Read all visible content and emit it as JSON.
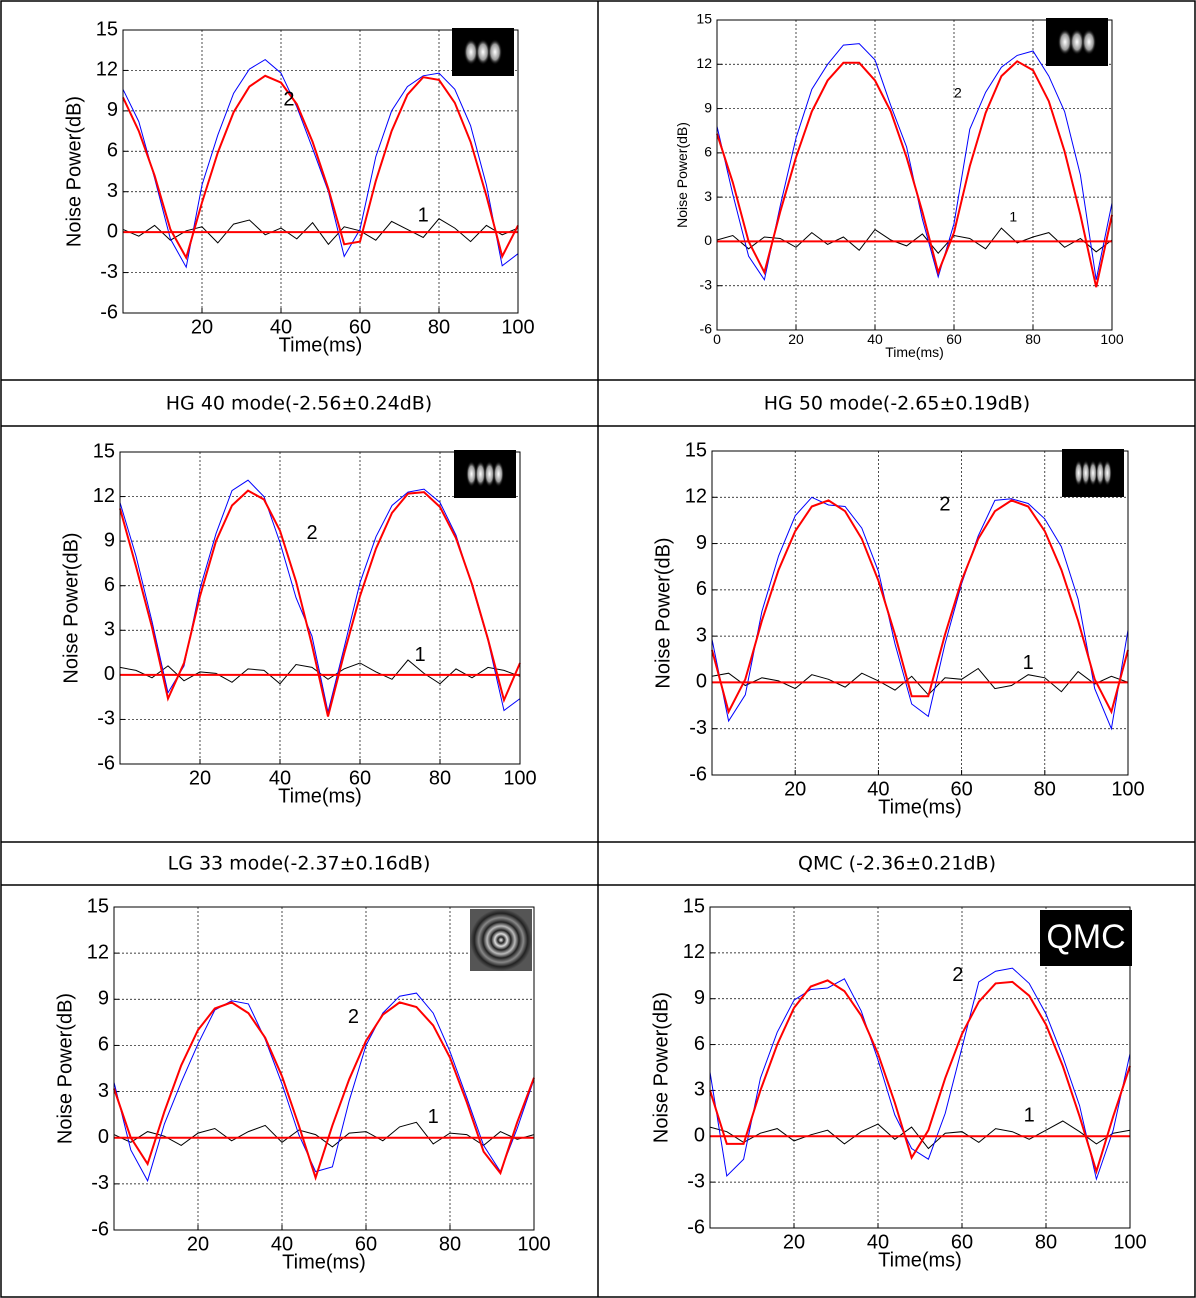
{
  "captions": [
    "HG 40 mode(-2.56±0.24dB)",
    "HG 50 mode(-2.65±0.19dB)",
    "LG 33 mode(-2.37±0.16dB)",
    "QMC (-2.36±0.21dB)"
  ],
  "chart_data": [
    {
      "type": "line",
      "xlabel": "Time(ms)",
      "ylabel": "Noise Power(dB)",
      "xlim": [
        0,
        100
      ],
      "ylim": [
        -6,
        15
      ],
      "xticks": [
        20,
        40,
        60,
        80,
        100
      ],
      "yticks": [
        -6,
        -3,
        0,
        3,
        6,
        9,
        12,
        15
      ],
      "grid": true,
      "x": [
        0,
        4,
        8,
        12,
        16,
        20,
        24,
        28,
        32,
        36,
        40,
        44,
        48,
        52,
        56,
        60,
        64,
        68,
        72,
        76,
        80,
        84,
        88,
        92,
        96,
        100
      ],
      "series": [
        {
          "color": "#000000",
          "values": [
            0.2,
            -0.3,
            0.5,
            -0.6,
            0.1,
            0.4,
            -0.8,
            0.6,
            0.9,
            -0.2,
            0.3,
            -0.5,
            0.7,
            -0.9,
            0.4,
            0.1,
            -0.6,
            0.8,
            0.2,
            -0.4,
            1.0,
            0.3,
            -0.7,
            0.5,
            -0.2,
            0.3
          ]
        },
        {
          "color": "#0000ff",
          "values": [
            10.6,
            8.2,
            4.0,
            -0.5,
            -2.6,
            3.5,
            7.2,
            10.3,
            12.1,
            12.8,
            11.8,
            9.3,
            6.2,
            3.0,
            -1.8,
            0.2,
            5.6,
            9.0,
            10.8,
            11.6,
            11.8,
            10.6,
            7.9,
            3.5,
            -2.5,
            -1.6
          ]
        },
        {
          "color": "#ff0000",
          "values": [
            0,
            0,
            0,
            0,
            0,
            0,
            0,
            0,
            0,
            0,
            0,
            0,
            0,
            0,
            0,
            0,
            0,
            0,
            0,
            0,
            0,
            0,
            0,
            0,
            0,
            0
          ]
        },
        {
          "color": "#ff0000",
          "values": [
            10.0,
            7.5,
            4.2,
            0.2,
            -1.9,
            2.2,
            5.9,
            8.9,
            10.8,
            11.6,
            11.1,
            9.5,
            6.7,
            3.2,
            -0.9,
            -0.7,
            3.8,
            7.5,
            10.2,
            11.5,
            11.3,
            9.6,
            6.7,
            2.7,
            -1.8,
            0.5
          ]
        }
      ],
      "annotations": [
        {
          "text": "2",
          "x": 42,
          "y": 9.8
        },
        {
          "text": "1",
          "x": 76,
          "y": 1.2
        }
      ]
    },
    {
      "type": "line",
      "xlabel": "Time(ms)",
      "ylabel": "Noise Power(dB)",
      "xlim": [
        0,
        100
      ],
      "ylim": [
        -6,
        15
      ],
      "xticks": [
        0,
        20,
        40,
        60,
        80,
        100
      ],
      "yticks": [
        -6,
        -3,
        0,
        3,
        6,
        9,
        12,
        15
      ],
      "grid": true,
      "x": [
        0,
        4,
        8,
        12,
        16,
        20,
        24,
        28,
        32,
        36,
        40,
        44,
        48,
        52,
        56,
        60,
        64,
        68,
        72,
        76,
        80,
        84,
        88,
        92,
        96,
        100
      ],
      "series": [
        {
          "color": "#000000",
          "values": [
            0.1,
            0.4,
            -0.5,
            0.3,
            0.2,
            -0.4,
            0.6,
            -0.2,
            0.3,
            -0.6,
            0.8,
            0.1,
            -0.3,
            0.5,
            -0.8,
            0.4,
            0.2,
            -0.5,
            0.9,
            -0.1,
            0.3,
            0.6,
            -0.4,
            0.2,
            -0.7,
            0.1
          ]
        },
        {
          "color": "#0000ff",
          "values": [
            7.8,
            3.2,
            -1.0,
            -2.6,
            2.4,
            7.0,
            10.3,
            12.0,
            13.3,
            13.4,
            12.3,
            9.2,
            6.4,
            1.5,
            -2.4,
            1.2,
            7.6,
            10.1,
            11.8,
            12.6,
            12.9,
            11.2,
            8.8,
            4.5,
            -2.6,
            2.6
          ]
        },
        {
          "color": "#ff0000",
          "values": [
            0,
            0,
            0,
            0,
            0,
            0,
            0,
            0,
            0,
            0,
            0,
            0,
            0,
            0,
            0,
            0,
            0,
            0,
            0,
            0,
            0,
            0,
            0,
            0,
            0,
            0
          ]
        },
        {
          "color": "#ff0000",
          "values": [
            7.3,
            4.0,
            0.0,
            -2.1,
            2.0,
            5.7,
            8.8,
            10.9,
            12.1,
            12.1,
            10.9,
            8.8,
            5.7,
            2.0,
            -2.1,
            0.6,
            5.1,
            8.7,
            11.2,
            12.2,
            11.6,
            9.5,
            6.1,
            1.8,
            -3.1,
            1.8
          ]
        }
      ],
      "annotations": [
        {
          "text": "2",
          "x": 61,
          "y": 10
        },
        {
          "text": "1",
          "x": 75,
          "y": 1.6
        }
      ]
    },
    {
      "type": "line",
      "xlabel": "Time(ms)",
      "ylabel": "Noise Power(dB)",
      "xlim": [
        0,
        100
      ],
      "ylim": [
        -6,
        15
      ],
      "xticks": [
        20,
        40,
        60,
        80,
        100
      ],
      "yticks": [
        -6,
        -3,
        0,
        3,
        6,
        9,
        12,
        15
      ],
      "grid": true,
      "x": [
        0,
        4,
        8,
        12,
        16,
        20,
        24,
        28,
        32,
        36,
        40,
        44,
        48,
        52,
        56,
        60,
        64,
        68,
        72,
        76,
        80,
        84,
        88,
        92,
        96,
        100
      ],
      "series": [
        {
          "color": "#000000",
          "values": [
            0.5,
            0.3,
            -0.2,
            0.6,
            -0.4,
            0.2,
            0.1,
            -0.5,
            0.4,
            0.3,
            -0.6,
            0.7,
            0.5,
            -0.3,
            0.4,
            0.8,
            0.2,
            -0.3,
            1.0,
            0.1,
            -0.6,
            0.4,
            -0.2,
            0.5,
            0.3,
            -0.1
          ]
        },
        {
          "color": "#0000ff",
          "values": [
            11.6,
            8.0,
            3.6,
            -1.2,
            0.6,
            5.8,
            9.5,
            12.4,
            13.1,
            12.0,
            8.9,
            5.2,
            2.6,
            -2.5,
            1.8,
            6.2,
            9.3,
            11.4,
            12.3,
            12.5,
            11.6,
            9.4,
            6.0,
            2.3,
            -2.4,
            -1.6
          ]
        },
        {
          "color": "#ff0000",
          "values": [
            0,
            0,
            0,
            0,
            0,
            0,
            0,
            0,
            0,
            0,
            0,
            0,
            0,
            0,
            0,
            0,
            0,
            0,
            0,
            0,
            0,
            0,
            0,
            0,
            0,
            0
          ]
        },
        {
          "color": "#ff0000",
          "values": [
            11.2,
            7.3,
            3.2,
            -1.6,
            0.8,
            5.3,
            9.0,
            11.4,
            12.4,
            11.8,
            9.7,
            6.3,
            2.0,
            -2.8,
            1.4,
            5.3,
            8.5,
            10.9,
            12.2,
            12.3,
            11.3,
            9.2,
            6.1,
            2.4,
            -1.7,
            0.8
          ]
        }
      ],
      "annotations": [
        {
          "text": "2",
          "x": 48,
          "y": 9.5
        },
        {
          "text": "1",
          "x": 75,
          "y": 1.3
        }
      ]
    },
    {
      "type": "line",
      "xlabel": "Time(ms)",
      "ylabel": "Noise Power(dB)",
      "xlim": [
        0,
        100
      ],
      "ylim": [
        -6,
        15
      ],
      "xticks": [
        20,
        40,
        60,
        80,
        100
      ],
      "yticks": [
        -6,
        -3,
        0,
        3,
        6,
        9,
        12,
        15
      ],
      "grid": true,
      "x": [
        0,
        4,
        8,
        12,
        16,
        20,
        24,
        28,
        32,
        36,
        40,
        44,
        48,
        52,
        56,
        60,
        64,
        68,
        72,
        76,
        80,
        84,
        88,
        92,
        96,
        100
      ],
      "series": [
        {
          "color": "#000000",
          "values": [
            0.4,
            0.6,
            -0.2,
            0.3,
            0.1,
            -0.4,
            0.5,
            0.2,
            -0.3,
            0.6,
            0.1,
            -0.5,
            0.4,
            -0.8,
            0.3,
            0.2,
            0.9,
            -0.4,
            -0.2,
            0.5,
            0.3,
            -0.6,
            0.7,
            -0.1,
            0.4,
            0.0
          ]
        },
        {
          "color": "#0000ff",
          "values": [
            2.8,
            -2.5,
            -0.8,
            4.6,
            8.2,
            10.8,
            12.0,
            11.5,
            11.4,
            10.0,
            7.2,
            2.5,
            -1.4,
            -2.2,
            2.5,
            6.4,
            9.5,
            11.8,
            11.9,
            11.6,
            10.6,
            8.8,
            5.4,
            -0.4,
            -3.0,
            3.4
          ]
        },
        {
          "color": "#ff0000",
          "values": [
            0,
            0,
            0,
            0,
            0,
            0,
            0,
            0,
            0,
            0,
            0,
            0,
            0,
            0,
            0,
            0,
            0,
            0,
            0,
            0,
            0,
            0,
            0,
            0,
            0,
            0
          ]
        },
        {
          "color": "#ff0000",
          "values": [
            2.1,
            -1.9,
            0.2,
            4.0,
            7.3,
            9.8,
            11.4,
            11.8,
            11.1,
            9.3,
            6.6,
            3.1,
            -0.9,
            -0.9,
            3.1,
            6.6,
            9.3,
            11.1,
            11.8,
            11.4,
            9.8,
            7.3,
            4.0,
            0.2,
            -1.9,
            2.1
          ]
        }
      ],
      "annotations": [
        {
          "text": "2",
          "x": 56,
          "y": 11.5
        },
        {
          "text": "1",
          "x": 76,
          "y": 1.2
        }
      ]
    },
    {
      "type": "line",
      "xlabel": "Time(ms)",
      "ylabel": "Noise Power(dB)",
      "xlim": [
        0,
        100
      ],
      "ylim": [
        -6,
        15
      ],
      "xticks": [
        20,
        40,
        60,
        80,
        100
      ],
      "yticks": [
        -6,
        -3,
        0,
        3,
        6,
        9,
        12,
        15
      ],
      "grid": true,
      "x": [
        0,
        4,
        8,
        12,
        16,
        20,
        24,
        28,
        32,
        36,
        40,
        44,
        48,
        52,
        56,
        60,
        64,
        68,
        72,
        76,
        80,
        84,
        88,
        92,
        96,
        100
      ],
      "series": [
        {
          "color": "#000000",
          "values": [
            0.2,
            -0.3,
            0.4,
            0.1,
            -0.5,
            0.3,
            0.6,
            -0.2,
            0.4,
            0.8,
            -0.3,
            0.5,
            0.2,
            -0.6,
            0.3,
            0.4,
            -0.2,
            0.7,
            1.0,
            -0.4,
            0.3,
            0.2,
            -0.5,
            0.4,
            -0.1,
            0.2
          ]
        },
        {
          "color": "#0000ff",
          "values": [
            3.6,
            -0.8,
            -2.8,
            0.9,
            3.6,
            6.1,
            8.3,
            8.9,
            8.7,
            6.4,
            3.5,
            0.2,
            -2.2,
            -1.9,
            2.4,
            6.0,
            8.1,
            9.2,
            9.4,
            8.1,
            5.6,
            2.6,
            -0.5,
            -2.2,
            0.6,
            3.8
          ]
        },
        {
          "color": "#ff0000",
          "values": [
            0,
            0,
            0,
            0,
            0,
            0,
            0,
            0,
            0,
            0,
            0,
            0,
            0,
            0,
            0,
            0,
            0,
            0,
            0,
            0,
            0,
            0,
            0,
            0,
            0,
            0
          ]
        },
        {
          "color": "#ff0000",
          "values": [
            3.2,
            0.0,
            -1.7,
            1.7,
            4.7,
            7.0,
            8.4,
            8.8,
            8.1,
            6.5,
            4.0,
            0.8,
            -2.6,
            0.8,
            3.8,
            6.3,
            8.0,
            8.8,
            8.5,
            7.3,
            5.2,
            2.3,
            -0.9,
            -2.3,
            1.0,
            3.9
          ]
        }
      ],
      "annotations": [
        {
          "text": "2",
          "x": 57,
          "y": 7.8
        },
        {
          "text": "1",
          "x": 76,
          "y": 1.3
        }
      ]
    },
    {
      "type": "line",
      "xlabel": "Time(ms)",
      "ylabel": "Noise Power(dB)",
      "xlim": [
        0,
        100
      ],
      "ylim": [
        -6,
        15
      ],
      "xticks": [
        20,
        40,
        60,
        80,
        100
      ],
      "yticks": [
        -6,
        -3,
        0,
        3,
        6,
        9,
        12,
        15
      ],
      "grid": true,
      "inset_label": "QMC",
      "x": [
        0,
        4,
        8,
        12,
        16,
        20,
        24,
        28,
        32,
        36,
        40,
        44,
        48,
        52,
        56,
        60,
        64,
        68,
        72,
        76,
        80,
        84,
        88,
        92,
        96,
        100
      ],
      "series": [
        {
          "color": "#000000",
          "values": [
            0.6,
            0.3,
            -0.4,
            0.2,
            0.5,
            -0.3,
            0.1,
            0.4,
            -0.5,
            0.3,
            0.8,
            -0.2,
            0.6,
            -0.8,
            0.2,
            0.3,
            -0.4,
            0.5,
            0.3,
            -0.2,
            0.4,
            1.0,
            0.3,
            -0.5,
            0.2,
            0.4
          ]
        },
        {
          "color": "#0000ff",
          "values": [
            4.2,
            -2.6,
            -1.5,
            3.8,
            6.8,
            8.9,
            9.6,
            9.7,
            10.3,
            8.2,
            5.0,
            1.4,
            -0.8,
            -1.5,
            1.5,
            5.8,
            10.1,
            10.8,
            11.0,
            10.0,
            8.0,
            5.2,
            2.0,
            -2.8,
            0.4,
            5.4
          ]
        },
        {
          "color": "#ff0000",
          "values": [
            0,
            0,
            0,
            0,
            0,
            0,
            0,
            0,
            0,
            0,
            0,
            0,
            0,
            0,
            0,
            0,
            0,
            0,
            0,
            0,
            0,
            0,
            0,
            0,
            0,
            0
          ]
        },
        {
          "color": "#ff0000",
          "values": [
            3.0,
            -0.5,
            -0.5,
            3.0,
            6.0,
            8.4,
            9.8,
            10.2,
            9.5,
            7.9,
            5.4,
            2.2,
            -1.4,
            0.4,
            3.8,
            6.7,
            8.8,
            10.0,
            10.1,
            9.2,
            7.3,
            4.6,
            1.3,
            -2.3,
            1.3,
            4.6
          ]
        }
      ],
      "annotations": [
        {
          "text": "2",
          "x": 59,
          "y": 10.5
        },
        {
          "text": "1",
          "x": 76,
          "y": 1.3
        }
      ]
    }
  ]
}
